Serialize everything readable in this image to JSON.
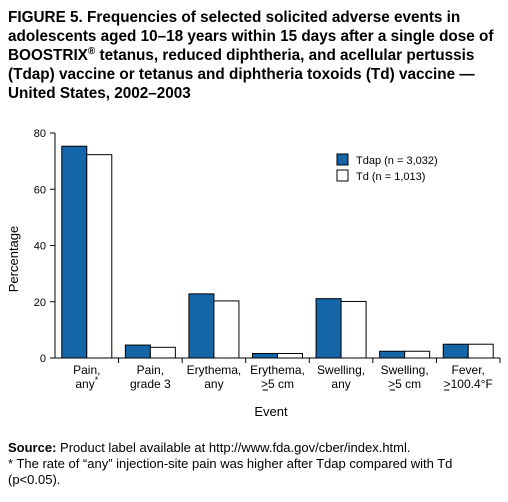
{
  "figure": {
    "title_main": "FIGURE 5. Frequencies of selected solicited adverse events in adolescents aged 10–18 years within 15 days after a single dose of BOOSTRIX",
    "title_reg": "®",
    "title_rest": " tetanus, reduced diphtheria, and acellular pertussis (Tdap) vaccine or tetanus and diphtheria toxoids (Td) vaccine — United States, 2002–2003"
  },
  "footer": {
    "source_label": "Source:",
    "source_text": " Product label available at http://www.fda.gov/cber/index.html.",
    "note_marker": "*",
    "note_text": " The rate of “any” injection-site pain was higher after Tdap compared with Td (p<0.05)."
  },
  "colors": {
    "tdap": "#1565a9",
    "td": "#ffffff",
    "outline": "#000000"
  },
  "chart_data": {
    "type": "bar",
    "title": "",
    "xlabel": "Event",
    "ylabel": "Percentage",
    "ylim": [
      0,
      80
    ],
    "yticks": [
      0,
      20,
      40,
      60,
      80
    ],
    "grid": false,
    "legend_position": "top-right",
    "categories": [
      {
        "line1": "Pain,",
        "line2": "any",
        "marker": "*"
      },
      {
        "line1": "Pain,",
        "line2": "grade 3",
        "marker": ""
      },
      {
        "line1": "Erythema,",
        "line2": "any",
        "marker": ""
      },
      {
        "line1": "Erythema,",
        "line2": ">5 cm",
        "marker": ""
      },
      {
        "line1": "Swelling,",
        "line2": "any",
        "marker": ""
      },
      {
        "line1": "Swelling,",
        "line2": ">5 cm",
        "marker": ""
      },
      {
        "line1": "Fever,",
        "line2": ">100.4°F",
        "marker": ""
      }
    ],
    "series": [
      {
        "name": "Tdap (n = 3,032)",
        "values": [
          75.3,
          4.6,
          22.8,
          1.6,
          21.1,
          2.4,
          4.9
        ]
      },
      {
        "name": "Td (n = 1,013)",
        "values": [
          72.3,
          3.8,
          20.3,
          1.6,
          20.1,
          2.4,
          4.9
        ]
      }
    ]
  }
}
